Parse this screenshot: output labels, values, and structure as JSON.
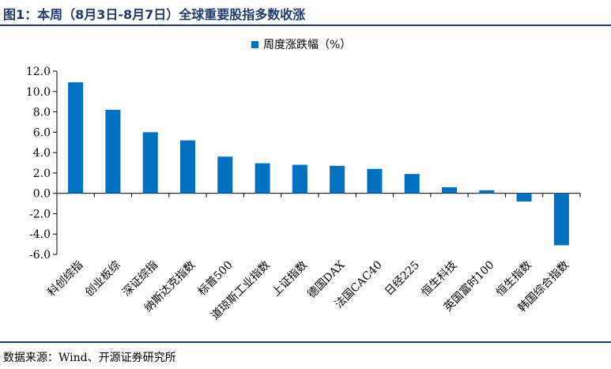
{
  "header": {
    "title": "图1：本周（8月3日-8月7日）全球重要股指多数收涨"
  },
  "footer": {
    "source": "数据来源：Wind、开源证券研究所"
  },
  "colors": {
    "bar": "#0070c0",
    "axis": "#000000",
    "title": "#1f3a6b"
  },
  "chart_data": {
    "type": "bar",
    "title": "",
    "xlabel": "",
    "ylabel": "",
    "legend_position": "top-center",
    "grid": false,
    "categories": [
      "科创综指",
      "创业板综",
      "深证综指",
      "纳斯达克指数",
      "标普500",
      "道琼斯工业指数",
      "上证指数",
      "德国DAX",
      "法国CAC40",
      "日经225",
      "恒生科技",
      "英国富时100",
      "恒生指数",
      "韩国综合指数"
    ],
    "series": [
      {
        "name": "周度涨跌幅（%）",
        "values": [
          10.9,
          8.2,
          6.0,
          5.2,
          3.6,
          2.95,
          2.8,
          2.7,
          2.4,
          1.9,
          0.6,
          0.3,
          -0.8,
          -5.1
        ]
      }
    ],
    "ylim": [
      -6.0,
      12.0
    ],
    "yticks": [
      "12.0",
      "10.0",
      "8.0",
      "6.0",
      "4.0",
      "2.0",
      "0.0",
      "-2.0",
      "-4.0",
      "-6.0"
    ]
  }
}
